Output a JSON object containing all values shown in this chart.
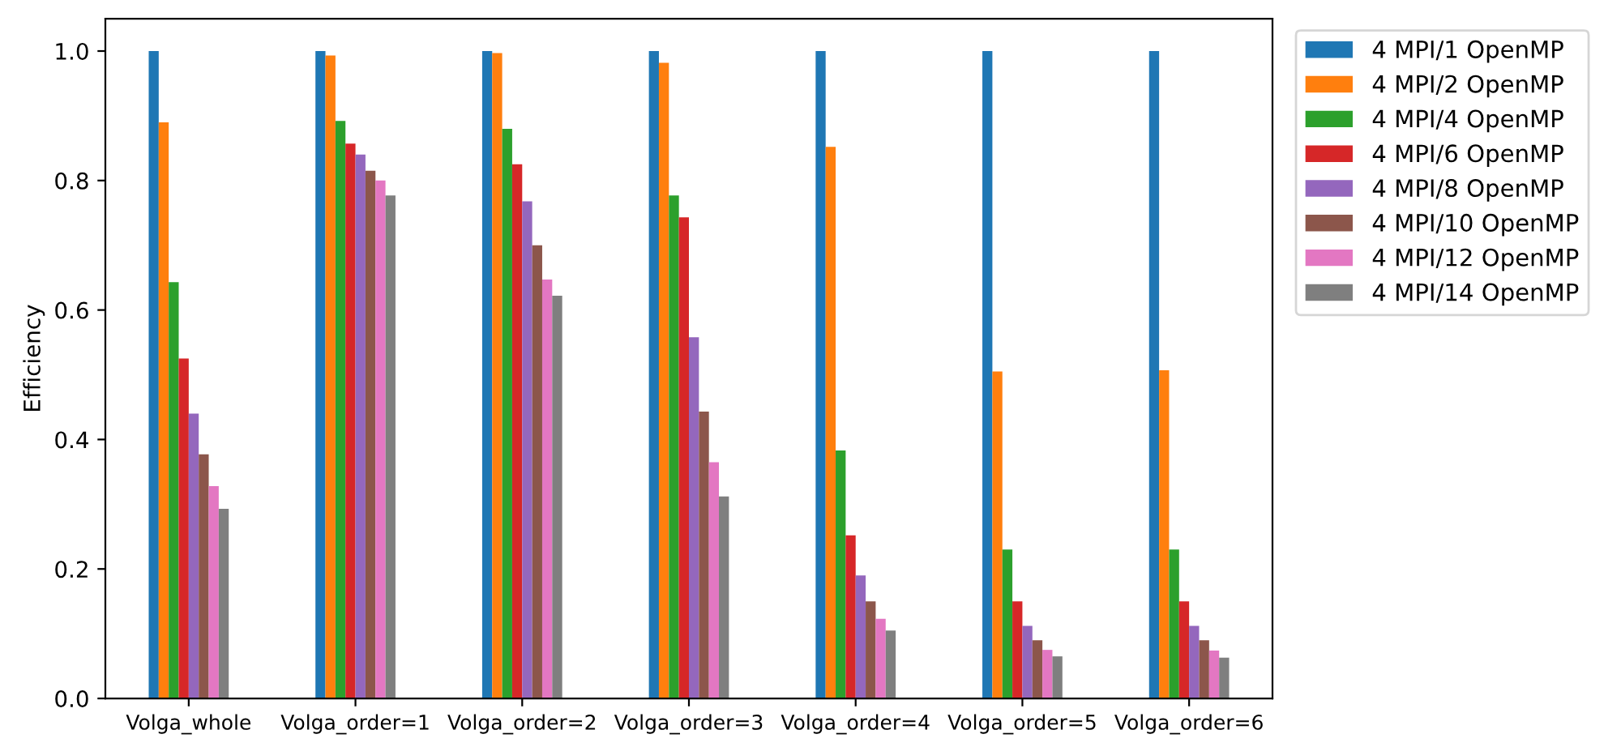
{
  "chart_data": {
    "type": "bar",
    "ylabel": "Efficiency",
    "categories": [
      "Volga_whole",
      "Volga_order=1",
      "Volga_order=2",
      "Volga_order=3",
      "Volga_order=4",
      "Volga_order=5",
      "Volga_order=6"
    ],
    "series": [
      {
        "name": "4 MPI/1 OpenMP",
        "color": "#1f77b4",
        "values": [
          1.0,
          1.0,
          1.0,
          1.0,
          1.0,
          1.0,
          1.0
        ]
      },
      {
        "name": "4 MPI/2 OpenMP",
        "color": "#ff7f0e",
        "values": [
          0.89,
          0.993,
          0.997,
          0.982,
          0.852,
          0.505,
          0.507
        ]
      },
      {
        "name": "4 MPI/4 OpenMP",
        "color": "#2ca02c",
        "values": [
          0.643,
          0.892,
          0.88,
          0.777,
          0.383,
          0.23,
          0.23
        ]
      },
      {
        "name": "4 MPI/6 OpenMP",
        "color": "#d62728",
        "values": [
          0.525,
          0.857,
          0.825,
          0.743,
          0.252,
          0.15,
          0.15
        ]
      },
      {
        "name": "4 MPI/8 OpenMP",
        "color": "#9467bd",
        "values": [
          0.44,
          0.84,
          0.768,
          0.558,
          0.19,
          0.112,
          0.112
        ]
      },
      {
        "name": "4 MPI/10 OpenMP",
        "color": "#8c564b",
        "values": [
          0.377,
          0.815,
          0.7,
          0.443,
          0.15,
          0.09,
          0.09
        ]
      },
      {
        "name": "4 MPI/12 OpenMP",
        "color": "#e377c2",
        "values": [
          0.328,
          0.8,
          0.647,
          0.365,
          0.123,
          0.075,
          0.074
        ]
      },
      {
        "name": "4 MPI/14 OpenMP",
        "color": "#7f7f7f",
        "values": [
          0.293,
          0.777,
          0.622,
          0.312,
          0.105,
          0.065,
          0.063
        ]
      }
    ],
    "ylim": [
      0,
      1.05
    ],
    "yticks": [
      {
        "value": 0,
        "label": "0.0"
      },
      0.2,
      0.4,
      0.6,
      0.8,
      {
        "value": 1,
        "label": "1.0"
      }
    ],
    "grid": false,
    "legend": "top right"
  }
}
